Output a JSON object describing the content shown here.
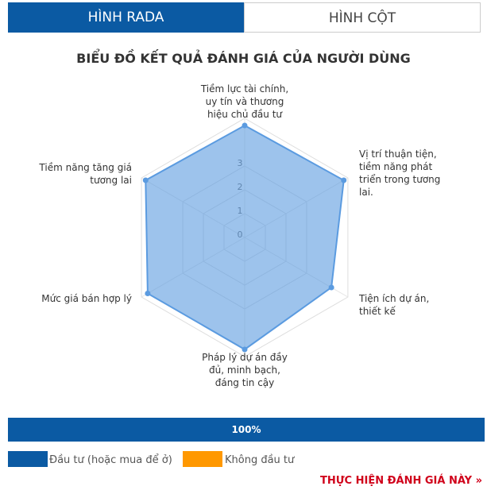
{
  "tabs": [
    "HÌNH RADA",
    "HÌNH CỘT"
  ],
  "chart_data": {
    "type": "radar",
    "title": "BIỂU ĐỒ KẾT QUẢ ĐÁNH GIÁ CỦA NGƯỜI DÙNG",
    "categories": [
      "Tiềm lực tài chính, uy tín và thương hiệu chủ đầu tư",
      "Vị trí thuận tiện, tiềm năng phát triển trong tương lai.",
      "Tiện ích dự án, thiết kế",
      "Pháp lý dự án đầy đủ, minh bạch, đáng tin cậy",
      "Mức giá bán hợp lý",
      "Tiềm năng tăng giá tương lai"
    ],
    "values": [
      4.7,
      4.8,
      4.2,
      4.7,
      4.7,
      4.8
    ],
    "color": "#5b9be0",
    "ylim": [
      0,
      5
    ],
    "yticks": [
      0,
      1,
      2,
      3
    ],
    "grid": true
  },
  "progress": {
    "value": 100,
    "label": "100%",
    "color": "#0b5aa3"
  },
  "legend": [
    {
      "name": "Đầu tư (hoặc mua để ở)",
      "color": "#0b5aa3"
    },
    {
      "name": "Không đầu tư",
      "color": "#ff9800"
    }
  ],
  "link": "THỰC HIỆN ĐÁNH GIÁ NÀY »"
}
